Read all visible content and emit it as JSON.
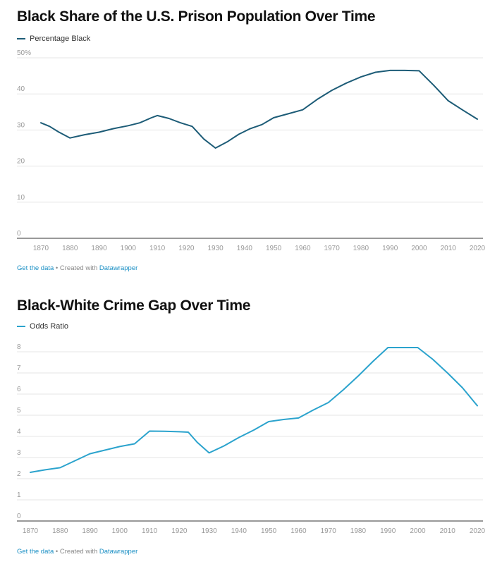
{
  "colors": {
    "chart1_line": "#1d5c77",
    "chart2_line": "#2ba3cd",
    "link": "#1a8fc4",
    "grid": "#e6e6e6",
    "axis_text": "#999999"
  },
  "footer": {
    "get_data": "Get the data",
    "separator": " • Created with ",
    "datawrapper": "Datawrapper"
  },
  "chart_data": [
    {
      "type": "line",
      "title": "Black Share of the U.S. Prison Population Over Time",
      "series": [
        {
          "name": "Percentage Black",
          "x": [
            1870,
            1873,
            1876,
            1880,
            1885,
            1890,
            1895,
            1900,
            1904,
            1908,
            1910,
            1914,
            1918,
            1922,
            1926,
            1930,
            1934,
            1938,
            1942,
            1946,
            1950,
            1955,
            1960,
            1965,
            1970,
            1975,
            1980,
            1985,
            1990,
            1995,
            2000,
            2005,
            2010,
            2015,
            2020
          ],
          "y": [
            32,
            31,
            29.5,
            27.8,
            28.7,
            29.4,
            30.4,
            31.2,
            32,
            33.4,
            34,
            33.2,
            32,
            31,
            27.5,
            25,
            26.7,
            28.8,
            30.4,
            31.5,
            33.4,
            34.5,
            35.6,
            38.5,
            41,
            43,
            44.7,
            46,
            46.5,
            46.5,
            46.4,
            42.4,
            38.1,
            35.5,
            33
          ]
        }
      ],
      "x_ticks": [
        "1870",
        "1880",
        "1890",
        "1900",
        "1910",
        "1920",
        "1930",
        "1940",
        "1950",
        "1960",
        "1970",
        "1980",
        "1990",
        "2000",
        "2010",
        "2020"
      ],
      "y_ticks": [
        "0",
        "10",
        "20",
        "30",
        "40",
        "50%"
      ],
      "ylim": [
        0,
        50
      ],
      "xlim": [
        1870,
        2020
      ],
      "grid": true,
      "legend_position": "top-left"
    },
    {
      "type": "line",
      "title": "Black-White Crime Gap Over Time",
      "series": [
        {
          "name": "Odds Ratio",
          "x": [
            1870,
            1875,
            1880,
            1885,
            1890,
            1895,
            1900,
            1905,
            1910,
            1915,
            1920,
            1923,
            1926,
            1930,
            1935,
            1940,
            1945,
            1950,
            1955,
            1960,
            1965,
            1970,
            1975,
            1980,
            1985,
            1990,
            1995,
            2000,
            2005,
            2010,
            2015,
            2020
          ],
          "y": [
            2.3,
            2.42,
            2.52,
            2.85,
            3.18,
            3.35,
            3.52,
            3.65,
            4.25,
            4.24,
            4.22,
            4.2,
            3.72,
            3.22,
            3.55,
            3.95,
            4.3,
            4.7,
            4.8,
            4.87,
            5.25,
            5.6,
            6.2,
            6.85,
            7.55,
            8.2,
            8.2,
            8.2,
            7.65,
            7,
            6.3,
            5.45
          ]
        }
      ],
      "x_ticks": [
        "1870",
        "1880",
        "1890",
        "1900",
        "1910",
        "1920",
        "1930",
        "1940",
        "1950",
        "1960",
        "1970",
        "1980",
        "1990",
        "2000",
        "2010",
        "2020"
      ],
      "y_ticks": [
        "0",
        "1",
        "2",
        "3",
        "4",
        "5",
        "6",
        "7",
        "8"
      ],
      "ylim": [
        0,
        8.2
      ],
      "xlim": [
        1870,
        2020
      ],
      "grid": true,
      "legend_position": "top-left"
    }
  ]
}
